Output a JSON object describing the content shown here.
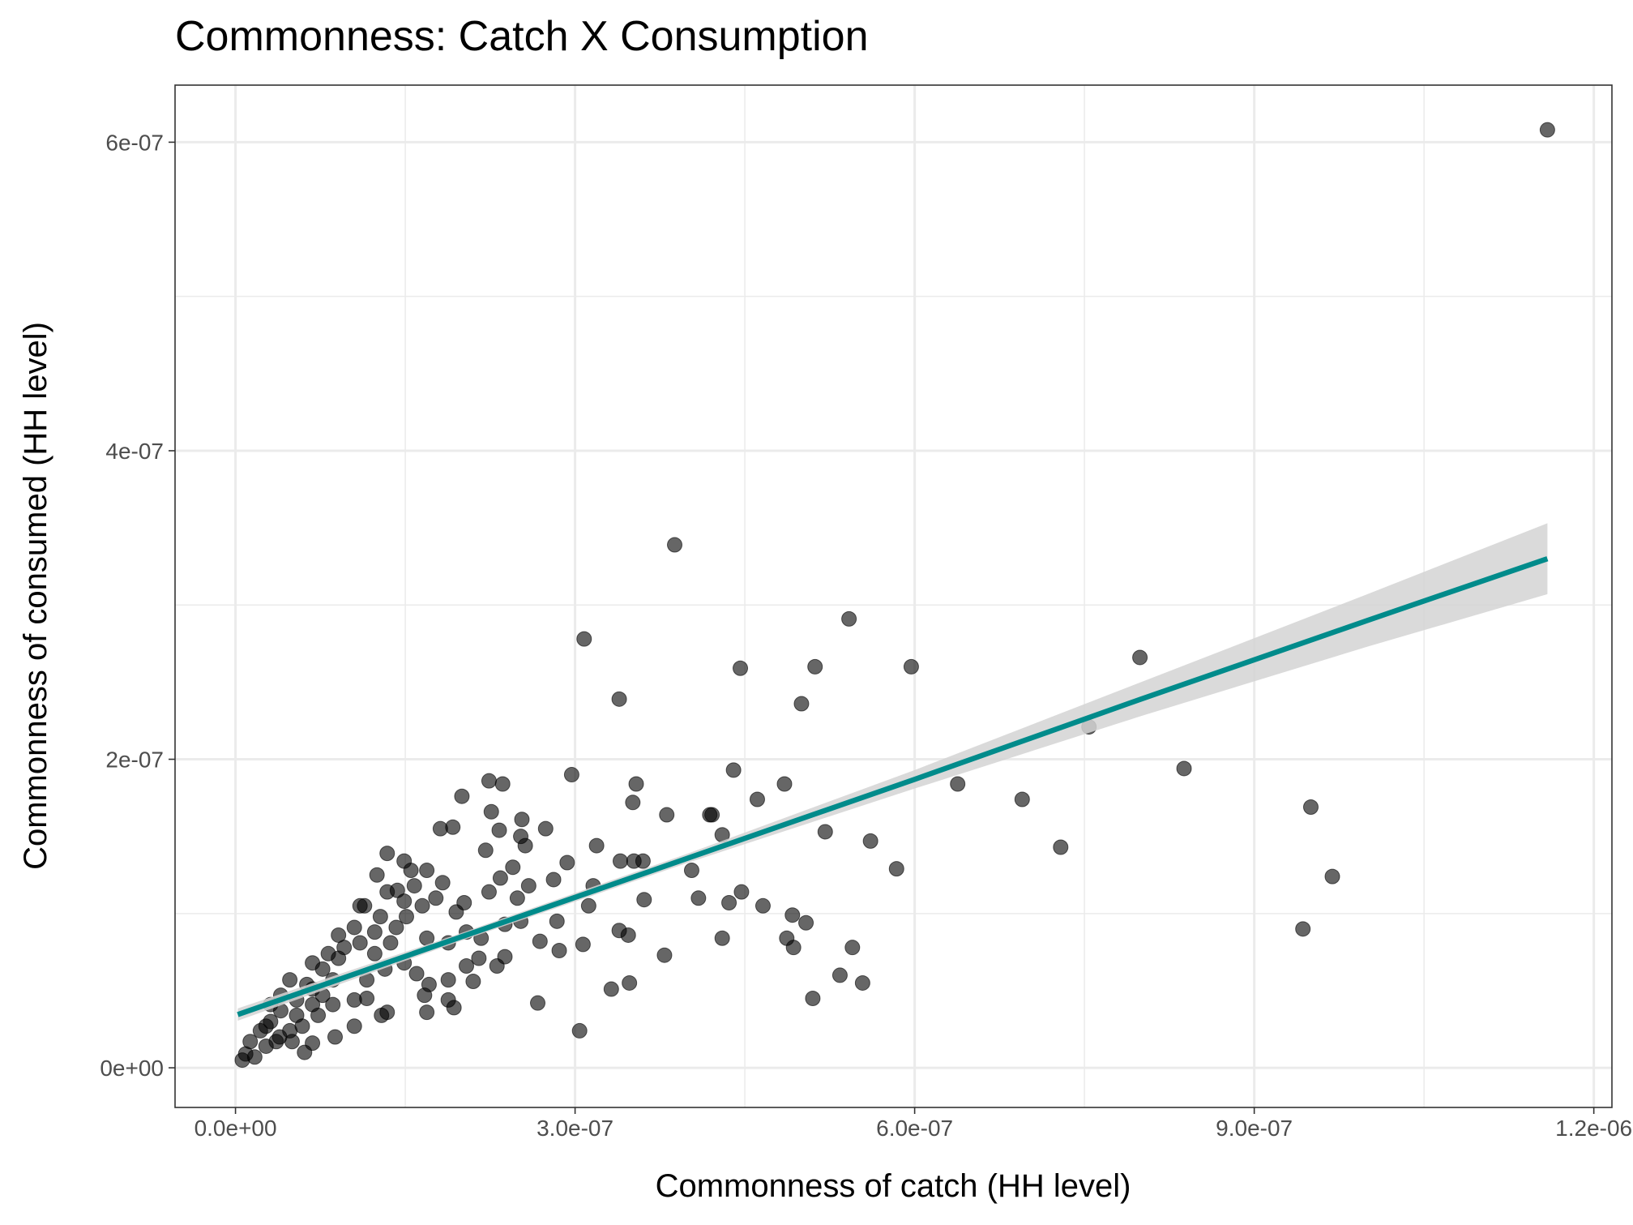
{
  "chart_data": {
    "type": "scatter",
    "title": "Commonness: Catch X Consumption",
    "x_label": "Commonness of catch (HH level)",
    "y_label": "Commonness of consumed (HH level)",
    "color": "#000000",
    "opacity": 0.6,
    "grid": true,
    "xlim": [
      -5.34e-08,
      1.216e-06
    ],
    "ylim": [
      -2.57e-08,
      6.37e-07
    ],
    "xticks": [
      {
        "value": 0,
        "label": "0.0e+00"
      },
      {
        "value": 3e-07,
        "label": "3.0e-07"
      },
      {
        "value": 6e-07,
        "label": "6.0e-07"
      },
      {
        "value": 9e-07,
        "label": "9.0e-07"
      },
      {
        "value": 1.2e-06,
        "label": "1.2e-06"
      }
    ],
    "yticks": [
      {
        "value": 0,
        "label": "0e+00"
      },
      {
        "value": 2e-07,
        "label": "2e-07"
      },
      {
        "value": 4e-07,
        "label": "4e-07"
      },
      {
        "value": 6e-07,
        "label": "6e-07"
      }
    ],
    "x": [
      1.159e-06,
      3.88e-07,
      3.08e-07,
      5.42e-07,
      4.46e-07,
      5.12e-07,
      5.97e-07,
      3.39e-07,
      5e-07,
      7.99e-07,
      7.54e-07,
      8.38e-07,
      6.38e-07,
      6.95e-07,
      7.29e-07,
      9.5e-07,
      9.69e-07,
      9.43e-07,
      4.4e-07,
      4.85e-07,
      4.61e-07,
      3.54e-07,
      3.51e-07,
      3.81e-07,
      4.19e-07,
      4.21e-07,
      2.97e-07,
      4.3e-07,
      5.21e-07,
      5.61e-07,
      5.84e-07,
      3.19e-07,
      3.6e-07,
      3.4e-07,
      3.52e-07,
      4.03e-07,
      4.47e-07,
      4.09e-07,
      4.36e-07,
      4.66e-07,
      3.61e-07,
      3.16e-07,
      3.12e-07,
      2.93e-07,
      4.92e-07,
      5.04e-07,
      4.87e-07,
      4.93e-07,
      4.3e-07,
      3.39e-07,
      3.47e-07,
      3.79e-07,
      3.07e-07,
      5.45e-07,
      5.34e-07,
      5.54e-07,
      3.48e-07,
      3.32e-07,
      5.1e-07,
      3.04e-07,
      2.67e-07,
      2.69e-07,
      2.86e-07,
      2.84e-07,
      2.74e-07,
      2.53e-07,
      2.52e-07,
      2.56e-07,
      2.33e-07,
      2.26e-07,
      2.24e-07,
      2.36e-07,
      2e-07,
      1.81e-07,
      1.92e-07,
      2.21e-07,
      1.34e-07,
      1.49e-07,
      1.69e-07,
      2.45e-07,
      2.59e-07,
      2.81e-07,
      2.24e-07,
      2.34e-07,
      2.49e-07,
      2.02e-07,
      1.95e-07,
      1.83e-07,
      1.58e-07,
      1.43e-07,
      1.25e-07,
      1.1e-07,
      1.28e-07,
      1.51e-07,
      1.65e-07,
      1.77e-07,
      2.52e-07,
      2.38e-07,
      2.17e-07,
      2.04e-07,
      1.88e-07,
      1.69e-07,
      1.42e-07,
      1.23e-07,
      1.05e-07,
      9.1e-08,
      2.15e-07,
      2.31e-07,
      2.38e-07,
      2.04e-07,
      2.1e-07,
      1.88e-07,
      1.71e-07,
      1.6e-07,
      1.49e-07,
      1.32e-07,
      1.16e-07,
      1.05e-07,
      1.16e-07,
      1.29e-07,
      1.34e-07,
      1.69e-07,
      1.88e-07,
      1.93e-07,
      1.67e-07,
      8.8e-08,
      1.05e-07,
      6.1e-08,
      7.7e-08,
      8.6e-08,
      6.8e-08,
      5.4e-08,
      4e-08,
      3.1e-08,
      2.2e-08,
      1.3e-08,
      6e-09,
      9e-09,
      1.7e-08,
      2.7e-08,
      3.9e-08,
      4.8e-08,
      5.9e-08,
      4.8e-08,
      6.8e-08,
      8.2e-08,
      9.6e-08,
      7.7e-08,
      6.3e-08,
      4e-08,
      3.1e-08,
      5.4e-08,
      6.8e-08,
      8.6e-08,
      7.3e-08,
      2.7e-08,
      3.6e-08,
      5e-08,
      6.8e-08,
      9.1e-08,
      1.1e-07,
      1.23e-07,
      1.37e-07,
      1.14e-07,
      1.34e-07,
      1.49e-07,
      1.55e-07
    ],
    "y": [
      6.08e-07,
      3.39e-07,
      2.78e-07,
      2.91e-07,
      2.59e-07,
      2.6e-07,
      2.6e-07,
      2.39e-07,
      2.36e-07,
      2.66e-07,
      2.21e-07,
      1.94e-07,
      1.84e-07,
      1.74e-07,
      1.43e-07,
      1.69e-07,
      1.24e-07,
      9e-08,
      1.93e-07,
      1.84e-07,
      1.74e-07,
      1.84e-07,
      1.72e-07,
      1.64e-07,
      1.64e-07,
      1.64e-07,
      1.9e-07,
      1.51e-07,
      1.53e-07,
      1.47e-07,
      1.29e-07,
      1.44e-07,
      1.34e-07,
      1.34e-07,
      1.34e-07,
      1.28e-07,
      1.14e-07,
      1.1e-07,
      1.07e-07,
      1.05e-07,
      1.09e-07,
      1.18e-07,
      1.05e-07,
      1.33e-07,
      9.9e-08,
      9.4e-08,
      8.4e-08,
      7.8e-08,
      8.4e-08,
      8.9e-08,
      8.6e-08,
      7.3e-08,
      8e-08,
      7.8e-08,
      6e-08,
      5.5e-08,
      5.5e-08,
      5.1e-08,
      4.5e-08,
      2.4e-08,
      4.2e-08,
      8.2e-08,
      7.6e-08,
      9.5e-08,
      1.55e-07,
      1.61e-07,
      1.5e-07,
      1.44e-07,
      1.54e-07,
      1.66e-07,
      1.86e-07,
      1.84e-07,
      1.76e-07,
      1.55e-07,
      1.56e-07,
      1.41e-07,
      1.39e-07,
      1.34e-07,
      1.28e-07,
      1.3e-07,
      1.18e-07,
      1.22e-07,
      1.14e-07,
      1.23e-07,
      1.1e-07,
      1.07e-07,
      1.01e-07,
      1.2e-07,
      1.18e-07,
      1.15e-07,
      1.25e-07,
      1.05e-07,
      9.8e-08,
      9.8e-08,
      1.05e-07,
      1.1e-07,
      9.5e-08,
      9.3e-08,
      8.4e-08,
      8.8e-08,
      8.1e-08,
      8.4e-08,
      9.1e-08,
      8.8e-08,
      9.1e-08,
      8.6e-08,
      7.1e-08,
      6.6e-08,
      7.2e-08,
      6.6e-08,
      5.6e-08,
      5.7e-08,
      5.4e-08,
      6.1e-08,
      6.8e-08,
      6.4e-08,
      5.7e-08,
      4.4e-08,
      4.5e-08,
      3.4e-08,
      3.6e-08,
      3.6e-08,
      4.4e-08,
      3.9e-08,
      4.7e-08,
      2e-08,
      2.7e-08,
      1e-08,
      4.7e-08,
      5.7e-08,
      5.1e-08,
      4.4e-08,
      3.7e-08,
      3e-08,
      2.4e-08,
      1.7e-08,
      5e-09,
      9e-09,
      7e-09,
      1.4e-08,
      2e-08,
      2.4e-08,
      2.7e-08,
      5.7e-08,
      6.8e-08,
      7.4e-08,
      7.8e-08,
      6.4e-08,
      5.4e-08,
      4.7e-08,
      4.1e-08,
      3.4e-08,
      4.1e-08,
      4.1e-08,
      3.4e-08,
      2.7e-08,
      1.7e-08,
      1.7e-08,
      1.6e-08,
      7.1e-08,
      8.1e-08,
      7.4e-08,
      8.1e-08,
      1.05e-07,
      1.14e-07,
      1.08e-07,
      1.28e-07
    ],
    "fit": {
      "color": "#008b8b",
      "band_color": "#d3d3d3",
      "x": [
        2e-09,
        2e-07,
        4e-07,
        6e-07,
        8e-07,
        1e-06,
        1.159e-06
      ],
      "y": [
        3.45e-08,
        8.5e-08,
        1.36e-07,
        1.87e-07,
        2.39e-07,
        2.9e-07,
        3.3e-07
      ],
      "lower": [
        3.05e-08,
        8.25e-08,
        1.33e-07,
        1.81e-07,
        2.28e-07,
        2.73e-07,
        3.07e-07
      ],
      "upper": [
        3.85e-08,
        8.75e-08,
        1.39e-07,
        1.93e-07,
        2.5e-07,
        3.07e-07,
        3.53e-07
      ]
    }
  }
}
